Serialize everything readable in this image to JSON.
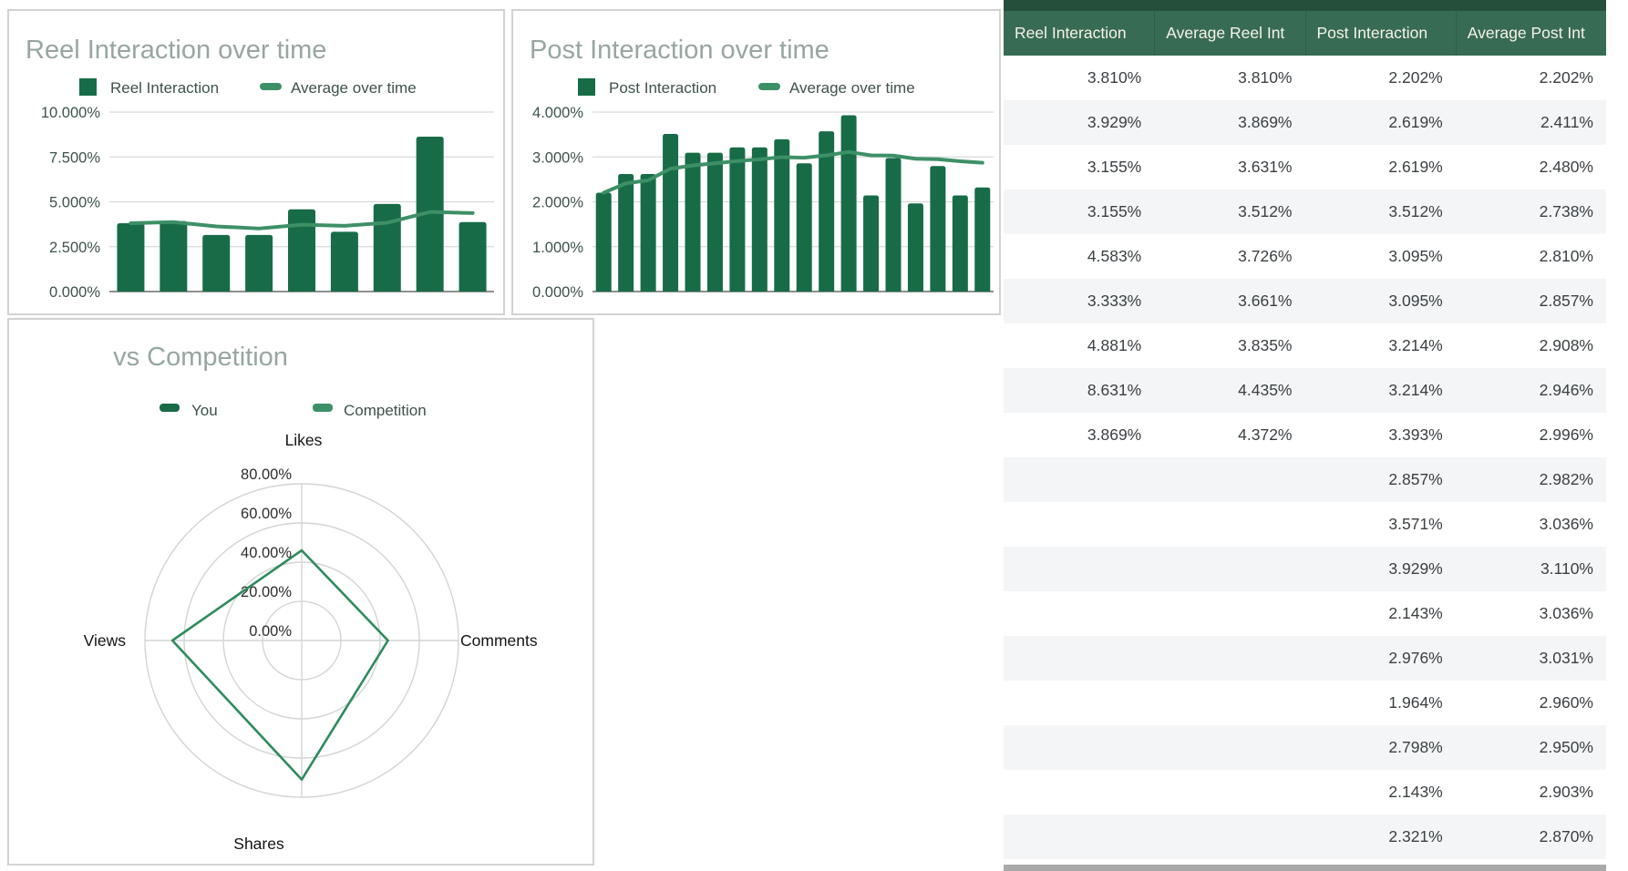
{
  "colors": {
    "bar_green": "#176c47",
    "line_green": "#3d9066",
    "radar_line": "#2e8b5d",
    "title_gray": "#98a6a2",
    "legend_text": "#3e524d",
    "table_header_bg": "#386b54",
    "table_header_text": "#f6f3e7",
    "table_top_strip": "#254f3b",
    "table_alt_row": "#f3f5f7",
    "table_text": "#3b4043",
    "gridline": "#d9d9d9",
    "axis_line": "#6b6b6b",
    "radar_grid": "#d4d4d4"
  },
  "chart_data": [
    {
      "type": "bar",
      "title": "Reel Interaction over time",
      "xlabel": "",
      "ylabel": "",
      "x_labels_visible": false,
      "ylim": [
        0,
        10
      ],
      "y_tick_values": [
        0,
        2.5,
        5,
        7.5,
        10
      ],
      "y_ticks": [
        "0.000%",
        "2.500%",
        "5.000%",
        "7.500%",
        "10.000%"
      ],
      "legend_position": "top",
      "grid": true,
      "series": [
        {
          "name": "Reel Interaction",
          "type": "bar",
          "values": [
            3.81,
            3.929,
            3.155,
            3.155,
            4.583,
            3.333,
            4.881,
            8.631,
            3.869
          ]
        },
        {
          "name": "Average over time",
          "type": "line",
          "values": [
            3.81,
            3.869,
            3.631,
            3.512,
            3.726,
            3.661,
            3.835,
            4.435,
            4.372
          ]
        }
      ]
    },
    {
      "type": "bar",
      "title": "Post Interaction over time",
      "xlabel": "",
      "ylabel": "",
      "x_labels_visible": false,
      "ylim": [
        0,
        4
      ],
      "y_tick_values": [
        0,
        1,
        2,
        3,
        4
      ],
      "y_ticks": [
        "0.000%",
        "1.000%",
        "2.000%",
        "3.000%",
        "4.000%"
      ],
      "legend_position": "top",
      "grid": true,
      "series": [
        {
          "name": "Post Interaction",
          "type": "bar",
          "values": [
            2.202,
            2.619,
            2.619,
            3.512,
            3.095,
            3.095,
            3.214,
            3.214,
            3.393,
            2.857,
            3.571,
            3.929,
            2.143,
            2.976,
            1.964,
            2.798,
            2.143,
            2.321
          ]
        },
        {
          "name": "Average over time",
          "type": "line",
          "values": [
            2.202,
            2.411,
            2.48,
            2.738,
            2.81,
            2.857,
            2.908,
            2.946,
            2.996,
            2.982,
            3.036,
            3.11,
            3.036,
            3.031,
            2.96,
            2.95,
            2.903,
            2.87
          ]
        }
      ]
    },
    {
      "type": "radar",
      "title": "vs Competition",
      "categories": [
        "Likes",
        "Comments",
        "Shares",
        "Views"
      ],
      "rlim": [
        0,
        80
      ],
      "ring_labels": [
        "0.00%",
        "20.00%",
        "40.00%",
        "60.00%",
        "80.00%"
      ],
      "legend_position": "top",
      "series": [
        {
          "name": "You",
          "values": [
            46,
            44,
            71,
            66
          ]
        },
        {
          "name": "Competition",
          "values": []
        }
      ]
    }
  ],
  "table": {
    "headers": [
      "Reel Interaction",
      "Average Reel Int",
      "Post Interaction",
      "Average Post Int"
    ],
    "rows": [
      [
        "3.810%",
        "3.810%",
        "2.202%",
        "2.202%"
      ],
      [
        "3.929%",
        "3.869%",
        "2.619%",
        "2.411%"
      ],
      [
        "3.155%",
        "3.631%",
        "2.619%",
        "2.480%"
      ],
      [
        "3.155%",
        "3.512%",
        "3.512%",
        "2.738%"
      ],
      [
        "4.583%",
        "3.726%",
        "3.095%",
        "2.810%"
      ],
      [
        "3.333%",
        "3.661%",
        "3.095%",
        "2.857%"
      ],
      [
        "4.881%",
        "3.835%",
        "3.214%",
        "2.908%"
      ],
      [
        "8.631%",
        "4.435%",
        "3.214%",
        "2.946%"
      ],
      [
        "3.869%",
        "4.372%",
        "3.393%",
        "2.996%"
      ],
      [
        "",
        "",
        "2.857%",
        "2.982%"
      ],
      [
        "",
        "",
        "3.571%",
        "3.036%"
      ],
      [
        "",
        "",
        "3.929%",
        "3.110%"
      ],
      [
        "",
        "",
        "2.143%",
        "3.036%"
      ],
      [
        "",
        "",
        "2.976%",
        "3.031%"
      ],
      [
        "",
        "",
        "1.964%",
        "2.960%"
      ],
      [
        "",
        "",
        "2.798%",
        "2.950%"
      ],
      [
        "",
        "",
        "2.143%",
        "2.903%"
      ],
      [
        "",
        "",
        "2.321%",
        "2.870%"
      ]
    ]
  }
}
